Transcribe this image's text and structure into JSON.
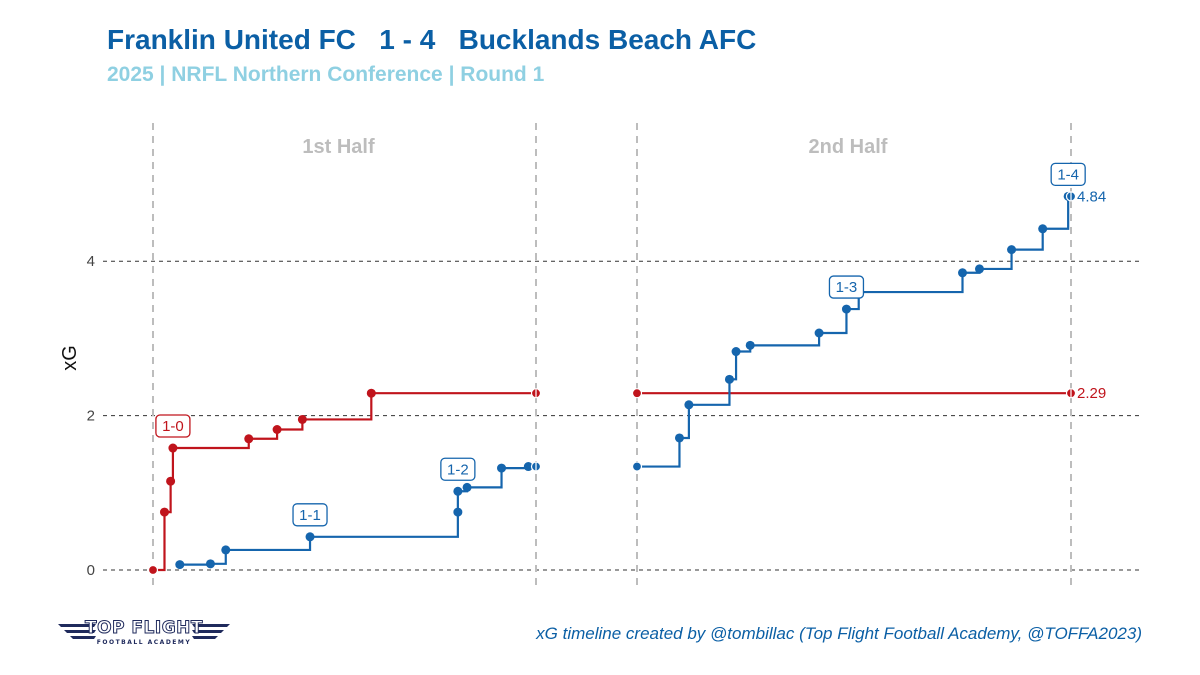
{
  "header": {
    "title": "Franklin United FC   1 - 4   Bucklands Beach AFC",
    "subtitle": "2025 | NRFL Northern Conference | Round 1"
  },
  "footer": {
    "credit": "xG timeline created by @tombillac (Top Flight Football Academy, @TOFFA2023)",
    "logo_main": "TOP FLIGHT",
    "logo_sub": "FOOTBALL ACADEMY"
  },
  "colors": {
    "home": "#c0141c",
    "away": "#1565ad",
    "title": "#0b5fa5",
    "subtitle": "#8fd0e2",
    "facet_label": "#bdbdbd"
  },
  "chart_data": {
    "type": "line",
    "subtype": "step",
    "ylabel": "xG",
    "yticks": [
      0,
      2,
      4
    ],
    "ylim": [
      -0.2,
      5.5
    ],
    "grid": "dashed horizontal lines at y ticks",
    "legend": "none (team colors in title)",
    "panels": [
      {
        "label": "1st Half",
        "xlim": [
          0,
          50
        ],
        "series": [
          {
            "team": "home",
            "shots": [
              [
                0,
                0
              ],
              [
                1.5,
                0.75
              ],
              [
                2.3,
                1.15
              ],
              [
                2.6,
                1.58
              ],
              [
                12.5,
                1.7
              ],
              [
                16.2,
                1.82
              ],
              [
                19.5,
                1.95
              ],
              [
                28.5,
                2.29
              ]
            ],
            "end": [
              50,
              2.29
            ],
            "goals": [
              {
                "minute": 2.6,
                "label": "1-0"
              }
            ]
          },
          {
            "team": "away",
            "shots": [
              [
                3.5,
                0.07
              ],
              [
                7.5,
                0.08
              ],
              [
                9.5,
                0.26
              ],
              [
                20.5,
                0.43
              ],
              [
                39.8,
                0.75
              ],
              [
                39.8,
                1.02
              ],
              [
                41.0,
                1.07
              ],
              [
                45.5,
                1.32
              ],
              [
                49.0,
                1.34
              ]
            ],
            "end": [
              50,
              1.34
            ],
            "goals": [
              {
                "minute": 20.5,
                "label": "1-1"
              },
              {
                "minute": 39.8,
                "label": "1-2"
              }
            ]
          }
        ]
      },
      {
        "label": "2nd Half",
        "xlim": [
          50,
          96
        ],
        "series": [
          {
            "team": "home",
            "shots": [
              [
                50,
                2.29
              ]
            ],
            "end": [
              96,
              2.29
            ],
            "end_label": "2.29",
            "goals": []
          },
          {
            "team": "away",
            "shots": [
              [
                50,
                1.34
              ],
              [
                54.5,
                1.71
              ],
              [
                55.5,
                2.14
              ],
              [
                59.8,
                2.47
              ],
              [
                60.5,
                2.83
              ],
              [
                62,
                2.91
              ],
              [
                69.3,
                3.07
              ],
              [
                72.2,
                3.38
              ],
              [
                73.5,
                3.6
              ],
              [
                84.5,
                3.85
              ],
              [
                86.3,
                3.9
              ],
              [
                89.7,
                4.15
              ],
              [
                93,
                4.42
              ],
              [
                95.7,
                4.84
              ]
            ],
            "end": [
              96,
              4.84
            ],
            "end_label": "4.84",
            "goals": [
              {
                "minute": 72.2,
                "label": "1-3"
              },
              {
                "minute": 95.7,
                "label": "1-4"
              }
            ]
          }
        ]
      }
    ]
  }
}
